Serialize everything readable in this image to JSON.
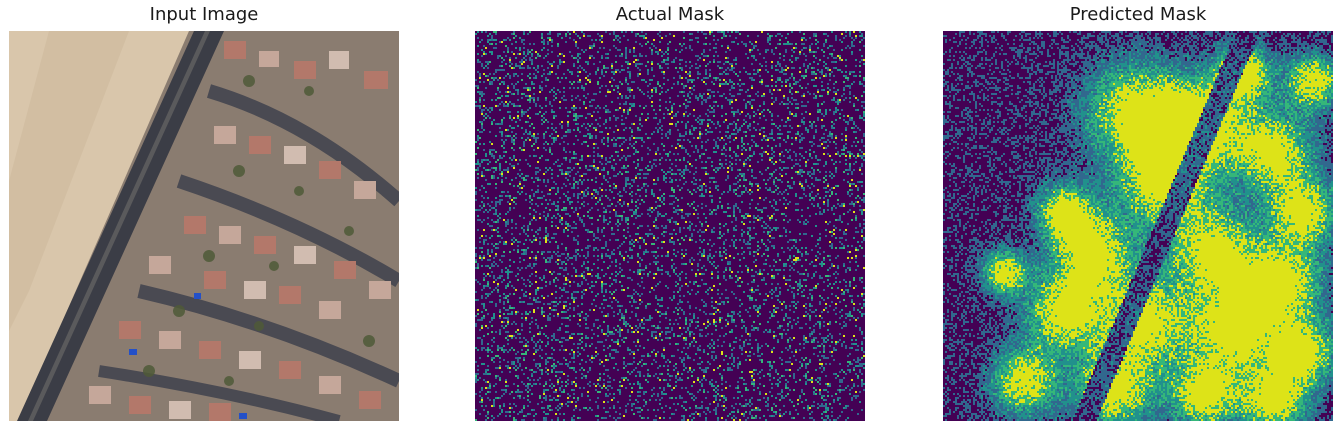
{
  "panels": [
    {
      "title": "Input Image",
      "kind": "aerial-photo"
    },
    {
      "title": "Actual Mask",
      "kind": "sparse-noise-mask"
    },
    {
      "title": "Predicted Mask",
      "kind": "heatmap-mask"
    }
  ],
  "colors": {
    "viridis_dark": "#440154",
    "viridis_blue": "#31688e",
    "viridis_teal": "#21918c",
    "viridis_green": "#35b779",
    "viridis_yellow": "#dde318",
    "sand": "#d9c6ab",
    "road": "#3b3d46",
    "roof": "#b3786a",
    "vegetation": "#4f5a38"
  }
}
